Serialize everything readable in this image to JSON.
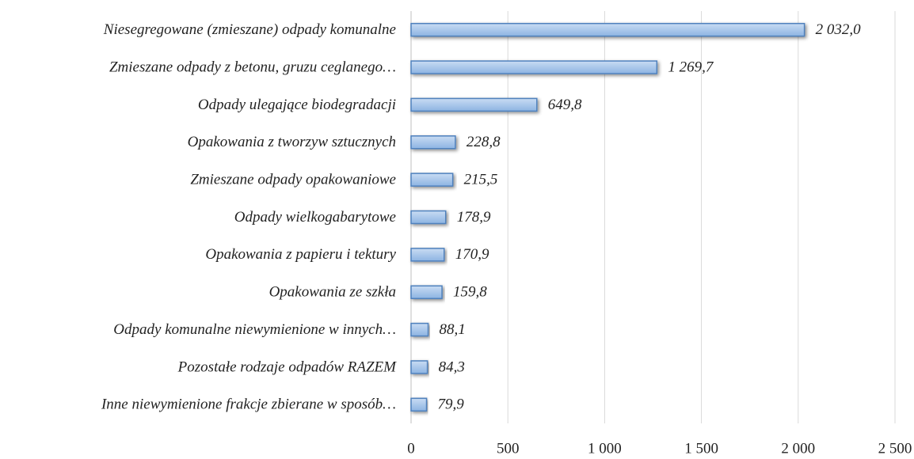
{
  "chart_data": {
    "type": "barh",
    "categories": [
      "Niesegregowane (zmieszane) odpady komunalne",
      "Zmieszane odpady z betonu, gruzu ceglanego…",
      "Odpady ulegające biodegradacji",
      "Opakowania z tworzyw sztucznych",
      "Zmieszane odpady opakowaniowe",
      "Odpady wielkogabarytowe",
      "Opakowania z papieru i tektury",
      "Opakowania ze szkła",
      "Odpady komunalne niewymienione w innych…",
      "Pozostałe rodzaje odpadów RAZEM",
      "Inne niewymienione frakcje zbierane w sposób…"
    ],
    "values": [
      2032.0,
      1269.7,
      649.8,
      228.8,
      215.5,
      178.9,
      170.9,
      159.8,
      88.1,
      84.3,
      79.9
    ],
    "value_labels": [
      "2 032,0",
      "1 269,7",
      "649,8",
      "228,8",
      "215,5",
      "178,9",
      "170,9",
      "159,8",
      "88,1",
      "84,3",
      "79,9"
    ],
    "color": "#8db4e2",
    "xlim": [
      0,
      2500
    ],
    "xticks": [
      0,
      500,
      {
        "value": 1000,
        "label": "1 000"
      },
      {
        "value": 1500,
        "label": "1 500"
      },
      {
        "value": 2000,
        "label": "2 000"
      },
      {
        "value": 2500,
        "label": "2 500"
      }
    ],
    "grid": true
  }
}
